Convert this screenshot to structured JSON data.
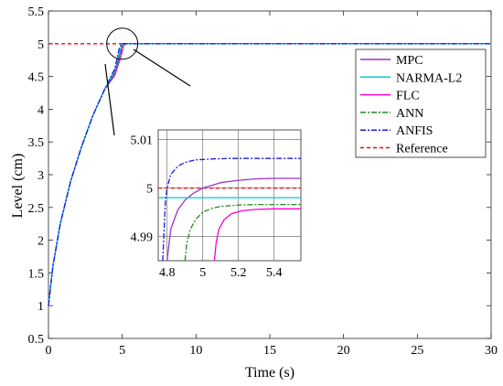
{
  "chart_data": {
    "type": "line",
    "xlabel": "Time (s)",
    "ylabel": "Level (cm)",
    "xlim": [
      0,
      30
    ],
    "ylim": [
      0.5,
      5.5
    ],
    "xticks": [
      0,
      5,
      10,
      15,
      20,
      25,
      30
    ],
    "xtick_labels": [
      "0",
      "5",
      "10",
      "15",
      "20",
      "25",
      "30"
    ],
    "yticks": [
      0.5,
      1,
      1.5,
      2,
      2.5,
      3,
      3.5,
      4,
      4.5,
      5,
      5.5
    ],
    "ytick_labels": [
      "0.5",
      "1",
      "1.5",
      "2",
      "2.5",
      "3",
      "3.5",
      "4",
      "4.5",
      "5",
      "5.5"
    ],
    "grid": false,
    "legend_position": "right",
    "series": [
      {
        "name": "MPC",
        "color": "#9932CC",
        "dash": "solid",
        "x": [
          0,
          0.3,
          0.8,
          1.5,
          2.2,
          3.0,
          3.8,
          4.5,
          4.85,
          5.0,
          5.2,
          30
        ],
        "y": [
          1.0,
          1.6,
          2.25,
          2.9,
          3.4,
          3.9,
          4.3,
          4.55,
          4.85,
          5.0,
          5.0,
          5.0
        ]
      },
      {
        "name": "NARMA-L2",
        "color": "#00CED1",
        "dash": "solid",
        "x": [
          0,
          0.3,
          0.8,
          1.5,
          2.2,
          3.0,
          3.8,
          4.5,
          4.85,
          5.0,
          30
        ],
        "y": [
          1.0,
          1.6,
          2.25,
          2.9,
          3.4,
          3.9,
          4.3,
          4.6,
          4.9,
          5.0,
          5.0
        ]
      },
      {
        "name": "FLC",
        "color": "#FF00CC",
        "dash": "solid",
        "x": [
          0,
          0.3,
          0.8,
          1.5,
          2.2,
          3.0,
          3.8,
          4.5,
          4.9,
          5.1,
          5.3,
          30
        ],
        "y": [
          1.0,
          1.6,
          2.25,
          2.9,
          3.4,
          3.9,
          4.3,
          4.52,
          4.8,
          4.98,
          5.0,
          5.0
        ]
      },
      {
        "name": "ANN",
        "color": "#228B22",
        "dash": "6 2 2 2",
        "x": [
          0,
          0.3,
          0.8,
          1.5,
          2.2,
          3.0,
          3.8,
          4.5,
          4.9,
          5.05,
          5.3,
          30
        ],
        "y": [
          1.0,
          1.6,
          2.25,
          2.9,
          3.4,
          3.9,
          4.3,
          4.53,
          4.85,
          4.99,
          5.0,
          5.0
        ]
      },
      {
        "name": "ANFIS",
        "color": "#1A1AE6",
        "dash": "6 2 2 2",
        "x": [
          0,
          0.3,
          0.8,
          1.5,
          2.2,
          3.0,
          3.8,
          4.5,
          4.8,
          4.95,
          30
        ],
        "y": [
          1.0,
          1.6,
          2.25,
          2.9,
          3.4,
          3.9,
          4.3,
          4.62,
          4.93,
          5.0,
          5.0
        ]
      },
      {
        "name": "Reference",
        "color": "#FF0000",
        "dash": "4 3",
        "x": [
          0,
          30
        ],
        "y": [
          5.0,
          5.0
        ]
      }
    ],
    "inset": {
      "xlim": [
        4.75,
        5.55
      ],
      "ylim": [
        4.985,
        5.012
      ],
      "xticks": [
        4.8,
        5,
        5.2,
        5.4
      ],
      "xtick_labels": [
        "4.8",
        "5",
        "5.2",
        "5.4"
      ],
      "yticks": [
        4.99,
        5,
        5.01
      ],
      "ytick_labels": [
        "4.99",
        "5",
        "5.01"
      ],
      "grid": true,
      "series": [
        {
          "name": "MPC",
          "x": [
            4.8,
            4.82,
            4.86,
            4.9,
            4.95,
            5.0,
            5.1,
            5.2,
            5.3,
            5.4,
            5.55
          ],
          "y": [
            4.985,
            4.9915,
            4.9955,
            4.9975,
            4.999,
            5.0,
            5.0011,
            5.0016,
            5.0019,
            5.002,
            5.002
          ]
        },
        {
          "name": "NARMA-L2",
          "x": [
            4.75,
            5.55
          ],
          "y": [
            4.998,
            4.998
          ]
        },
        {
          "name": "FLC",
          "x": [
            5.065,
            5.075,
            5.09,
            5.12,
            5.16,
            5.22,
            5.3,
            5.4,
            5.55
          ],
          "y": [
            4.985,
            4.9888,
            4.9915,
            4.9935,
            4.9947,
            4.9953,
            4.9956,
            4.9957,
            4.9957
          ]
        },
        {
          "name": "ANN",
          "x": [
            4.9,
            4.91,
            4.93,
            4.96,
            5.0,
            5.05,
            5.1,
            5.2,
            5.3,
            5.4,
            5.55
          ],
          "y": [
            4.985,
            4.9885,
            4.9915,
            4.9935,
            4.995,
            4.9958,
            4.9962,
            4.9965,
            4.9966,
            4.9966,
            4.9966
          ]
        },
        {
          "name": "ANFIS",
          "x": [
            4.775,
            4.79,
            4.8,
            4.82,
            4.86,
            4.9,
            4.96,
            5.05,
            5.15,
            5.3,
            5.55
          ],
          "y": [
            4.985,
            4.997,
            5.0,
            5.0028,
            5.0045,
            5.0053,
            5.0058,
            5.006,
            5.0061,
            5.0061,
            5.0061
          ]
        },
        {
          "name": "Reference",
          "x": [
            4.75,
            5.55
          ],
          "y": [
            5.0,
            5.0
          ]
        }
      ]
    }
  }
}
